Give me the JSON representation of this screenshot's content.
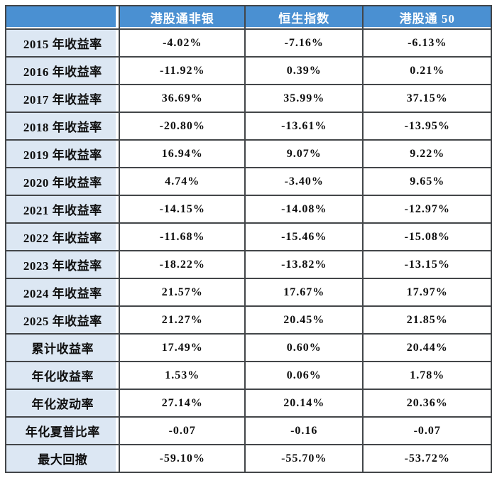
{
  "colors": {
    "header_bg": "#4a90d2",
    "header_text": "#ffffff",
    "label_bg": "#dce7f3",
    "border": "#434649",
    "body_text": "#0e0e0e",
    "page_bg": "#ffffff"
  },
  "chart_data": {
    "type": "table",
    "columns": [
      "港股通非银",
      "恒生指数",
      "港股通 50"
    ],
    "rows": [
      {
        "label": "2015 年收益率",
        "values": [
          "-4.02%",
          "-7.16%",
          "-6.13%"
        ]
      },
      {
        "label": "2016 年收益率",
        "values": [
          "-11.92%",
          "0.39%",
          "0.21%"
        ]
      },
      {
        "label": "2017 年收益率",
        "values": [
          "36.69%",
          "35.99%",
          "37.15%"
        ]
      },
      {
        "label": "2018 年收益率",
        "values": [
          "-20.80%",
          "-13.61%",
          "-13.95%"
        ]
      },
      {
        "label": "2019 年收益率",
        "values": [
          "16.94%",
          "9.07%",
          "9.22%"
        ]
      },
      {
        "label": "2020 年收益率",
        "values": [
          "4.74%",
          "-3.40%",
          "9.65%"
        ]
      },
      {
        "label": "2021 年收益率",
        "values": [
          "-14.15%",
          "-14.08%",
          "-12.97%"
        ]
      },
      {
        "label": "2022 年收益率",
        "values": [
          "-11.68%",
          "-15.46%",
          "-15.08%"
        ]
      },
      {
        "label": "2023 年收益率",
        "values": [
          "-18.22%",
          "-13.82%",
          "-13.15%"
        ]
      },
      {
        "label": "2024 年收益率",
        "values": [
          "21.57%",
          "17.67%",
          "17.97%"
        ]
      },
      {
        "label": "2025 年收益率",
        "values": [
          "21.27%",
          "20.45%",
          "21.85%"
        ]
      },
      {
        "label": "累计收益率",
        "values": [
          "17.49%",
          "0.60%",
          "20.44%"
        ]
      },
      {
        "label": "年化收益率",
        "values": [
          "1.53%",
          "0.06%",
          "1.78%"
        ]
      },
      {
        "label": "年化波动率",
        "values": [
          "27.14%",
          "20.14%",
          "20.36%"
        ]
      },
      {
        "label": "年化夏普比率",
        "values": [
          "-0.07",
          "-0.16",
          "-0.07"
        ]
      },
      {
        "label": "最大回撤",
        "values": [
          "-59.10%",
          "-55.70%",
          "-53.72%"
        ]
      }
    ]
  }
}
